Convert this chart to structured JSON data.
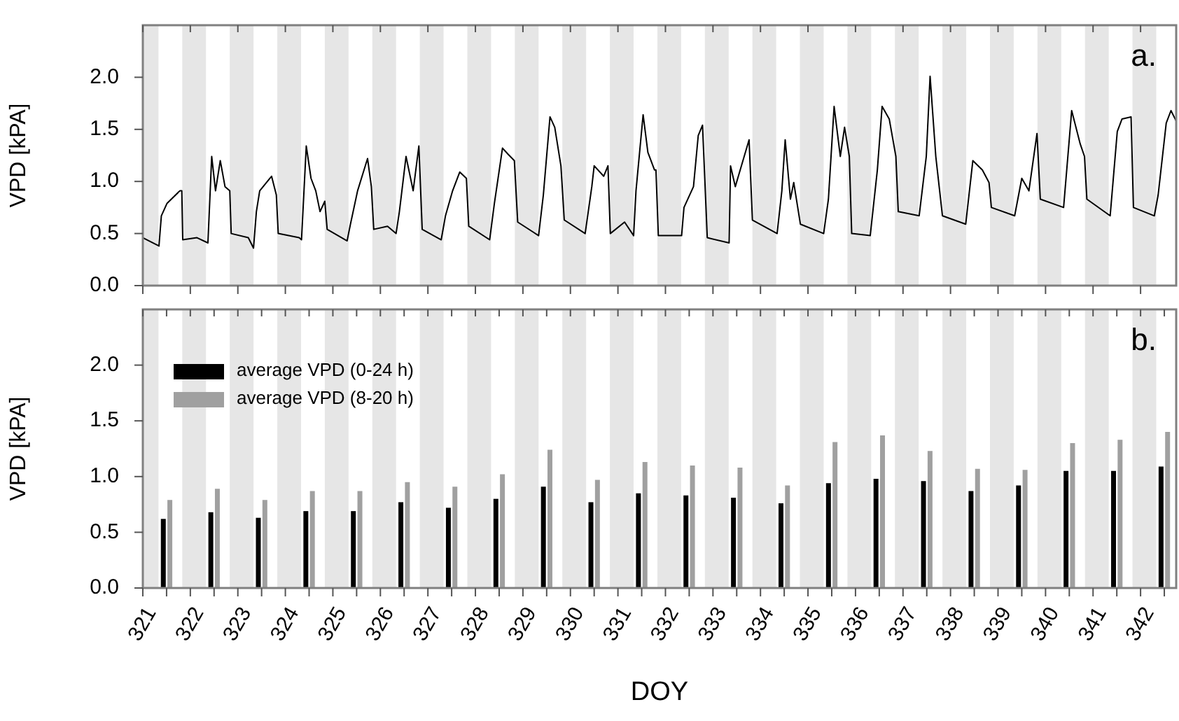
{
  "chart_data": [
    {
      "type": "line",
      "ylabel": "VPD [kPA]",
      "annotations": [
        "a."
      ],
      "tick_labels": "y",
      "xlim": [
        321,
        342.75
      ],
      "xticks": [
        {
          "value": 321,
          "label": null
        },
        {
          "value": 322,
          "label": null
        },
        {
          "value": 323,
          "label": null
        },
        {
          "value": 324,
          "label": null
        },
        {
          "value": 325,
          "label": null
        },
        {
          "value": 326,
          "label": null
        },
        {
          "value": 327,
          "label": null
        },
        {
          "value": 328,
          "label": null
        },
        {
          "value": 329,
          "label": null
        },
        {
          "value": 330,
          "label": null
        },
        {
          "value": 331,
          "label": null
        },
        {
          "value": 332,
          "label": null
        },
        {
          "value": 333,
          "label": null
        },
        {
          "value": 334,
          "label": null
        },
        {
          "value": 335,
          "label": null
        },
        {
          "value": 336,
          "label": null
        },
        {
          "value": 337,
          "label": null
        },
        {
          "value": 338,
          "label": null
        },
        {
          "value": 339,
          "label": null
        },
        {
          "value": 340,
          "label": null
        },
        {
          "value": 341,
          "label": null
        },
        {
          "value": 342,
          "label": null
        }
      ],
      "ylim": [
        0,
        2.5
      ],
      "yticks": [
        {
          "value": 0,
          "label": "0.0"
        },
        {
          "value": 0.5,
          "label": "0.5"
        },
        {
          "value": 1,
          "label": "1.0"
        },
        {
          "value": 1.5,
          "label": "1.5"
        },
        {
          "value": 2,
          "label": "2.0"
        }
      ],
      "bands": [
        {
          "axis": "x",
          "from": 321,
          "to": 321.33,
          "color": "#e6e6e6"
        },
        {
          "axis": "x",
          "from": 321.83,
          "to": 322.33,
          "color": "#e6e6e6"
        },
        {
          "axis": "x",
          "from": 322.83,
          "to": 323.33,
          "color": "#e6e6e6"
        },
        {
          "axis": "x",
          "from": 323.83,
          "to": 324.33,
          "color": "#e6e6e6"
        },
        {
          "axis": "x",
          "from": 324.83,
          "to": 325.33,
          "color": "#e6e6e6"
        },
        {
          "axis": "x",
          "from": 325.83,
          "to": 326.33,
          "color": "#e6e6e6"
        },
        {
          "axis": "x",
          "from": 326.83,
          "to": 327.33,
          "color": "#e6e6e6"
        },
        {
          "axis": "x",
          "from": 327.83,
          "to": 328.33,
          "color": "#e6e6e6"
        },
        {
          "axis": "x",
          "from": 328.83,
          "to": 329.33,
          "color": "#e6e6e6"
        },
        {
          "axis": "x",
          "from": 329.83,
          "to": 330.33,
          "color": "#e6e6e6"
        },
        {
          "axis": "x",
          "from": 330.83,
          "to": 331.33,
          "color": "#e6e6e6"
        },
        {
          "axis": "x",
          "from": 331.83,
          "to": 332.33,
          "color": "#e6e6e6"
        },
        {
          "axis": "x",
          "from": 332.83,
          "to": 333.33,
          "color": "#e6e6e6"
        },
        {
          "axis": "x",
          "from": 333.83,
          "to": 334.33,
          "color": "#e6e6e6"
        },
        {
          "axis": "x",
          "from": 334.83,
          "to": 335.33,
          "color": "#e6e6e6"
        },
        {
          "axis": "x",
          "from": 335.83,
          "to": 336.33,
          "color": "#e6e6e6"
        },
        {
          "axis": "x",
          "from": 336.83,
          "to": 337.33,
          "color": "#e6e6e6"
        },
        {
          "axis": "x",
          "from": 337.83,
          "to": 338.33,
          "color": "#e6e6e6"
        },
        {
          "axis": "x",
          "from": 338.83,
          "to": 339.33,
          "color": "#e6e6e6"
        },
        {
          "axis": "x",
          "from": 339.83,
          "to": 340.33,
          "color": "#e6e6e6"
        },
        {
          "axis": "x",
          "from": 340.83,
          "to": 341.33,
          "color": "#e6e6e6"
        },
        {
          "axis": "x",
          "from": 341.83,
          "to": 342.33,
          "color": "#e6e6e6"
        }
      ],
      "x": [
        321.0,
        321.34,
        321.39,
        321.51,
        321.78,
        321.82,
        321.84,
        322.14,
        322.37,
        322.45,
        322.53,
        322.63,
        322.73,
        322.83,
        322.86,
        323.22,
        323.33,
        323.39,
        323.46,
        323.71,
        323.81,
        323.85,
        324.29,
        324.34,
        324.44,
        324.54,
        324.64,
        324.73,
        324.83,
        324.88,
        325.3,
        325.37,
        325.52,
        325.73,
        325.81,
        325.86,
        326.15,
        326.33,
        326.4,
        326.54,
        326.69,
        326.81,
        326.88,
        327.28,
        327.37,
        327.52,
        327.67,
        327.81,
        327.86,
        328.3,
        328.4,
        328.57,
        328.69,
        328.82,
        328.89,
        329.33,
        329.43,
        329.57,
        329.67,
        329.8,
        329.87,
        330.31,
        330.45,
        330.5,
        330.7,
        330.79,
        330.84,
        331.14,
        331.33,
        331.38,
        331.53,
        331.63,
        331.77,
        331.8,
        331.85,
        332.34,
        332.39,
        332.59,
        332.69,
        332.78,
        332.88,
        333.34,
        333.37,
        333.47,
        333.76,
        333.83,
        334.35,
        334.45,
        334.52,
        334.63,
        334.7,
        334.84,
        335.33,
        335.43,
        335.55,
        335.68,
        335.77,
        335.87,
        335.92,
        336.31,
        336.46,
        336.56,
        336.71,
        336.85,
        336.9,
        337.34,
        337.49,
        337.57,
        337.69,
        337.83,
        338.32,
        338.47,
        338.67,
        338.81,
        338.86,
        339.35,
        339.5,
        339.65,
        339.82,
        339.89,
        340.38,
        340.55,
        340.73,
        340.82,
        340.87,
        341.36,
        341.51,
        341.61,
        341.8,
        341.85,
        342.29,
        342.37,
        342.54,
        342.64,
        342.75
      ],
      "series": [
        {
          "color": "#000000",
          "values": [
            0.46,
            0.38,
            0.67,
            0.79,
            0.91,
            0.91,
            0.44,
            0.46,
            0.41,
            1.24,
            0.91,
            1.2,
            0.95,
            0.91,
            0.5,
            0.46,
            0.36,
            0.71,
            0.91,
            1.05,
            0.87,
            0.5,
            0.46,
            0.44,
            1.34,
            1.03,
            0.91,
            0.71,
            0.81,
            0.54,
            0.43,
            0.59,
            0.91,
            1.22,
            0.95,
            0.54,
            0.57,
            0.5,
            0.71,
            1.24,
            0.91,
            1.34,
            0.54,
            0.44,
            0.67,
            0.91,
            1.09,
            1.03,
            0.57,
            0.44,
            0.79,
            1.32,
            1.26,
            1.2,
            0.61,
            0.48,
            0.87,
            1.62,
            1.52,
            1.15,
            0.63,
            0.5,
            0.95,
            1.15,
            1.05,
            1.15,
            0.5,
            0.61,
            0.48,
            0.91,
            1.64,
            1.28,
            1.11,
            1.11,
            0.48,
            0.48,
            0.75,
            0.95,
            1.44,
            1.54,
            0.46,
            0.41,
            1.15,
            0.95,
            1.4,
            0.63,
            0.5,
            0.91,
            1.4,
            0.83,
            0.99,
            0.59,
            0.5,
            0.83,
            1.72,
            1.24,
            1.52,
            1.24,
            0.5,
            0.48,
            1.11,
            1.72,
            1.6,
            1.24,
            0.71,
            0.67,
            1.24,
            2.01,
            1.24,
            0.67,
            0.59,
            1.2,
            1.11,
            0.99,
            0.75,
            0.67,
            1.03,
            0.91,
            1.46,
            0.83,
            0.75,
            1.68,
            1.36,
            1.24,
            0.83,
            0.67,
            1.48,
            1.6,
            1.62,
            0.75,
            0.67,
            0.87,
            1.56,
            1.68,
            1.58
          ]
        }
      ]
    },
    {
      "type": "bar",
      "ylabel": "VPD [kPA]",
      "xlabel": "DOY",
      "annotations": [
        "b."
      ],
      "legend": "top left",
      "xlim": [
        321,
        342.75
      ],
      "xticks": [
        321,
        {
          "value": 321.5,
          "label": null
        },
        322,
        {
          "value": 322.5,
          "label": null
        },
        323,
        {
          "value": 323.5,
          "label": null
        },
        324,
        {
          "value": 324.5,
          "label": null
        },
        325,
        {
          "value": 325.5,
          "label": null
        },
        326,
        {
          "value": 326.5,
          "label": null
        },
        327,
        {
          "value": 327.5,
          "label": null
        },
        328,
        {
          "value": 328.5,
          "label": null
        },
        329,
        {
          "value": 329.5,
          "label": null
        },
        330,
        {
          "value": 330.5,
          "label": null
        },
        331,
        {
          "value": 331.5,
          "label": null
        },
        332,
        {
          "value": 332.5,
          "label": null
        },
        333,
        {
          "value": 333.5,
          "label": null
        },
        334,
        {
          "value": 334.5,
          "label": null
        },
        335,
        {
          "value": 335.5,
          "label": null
        },
        336,
        {
          "value": 336.5,
          "label": null
        },
        337,
        {
          "value": 337.5,
          "label": null
        },
        338,
        {
          "value": 338.5,
          "label": null
        },
        339,
        {
          "value": 339.5,
          "label": null
        },
        340,
        {
          "value": 340.5,
          "label": null
        },
        341,
        {
          "value": 341.5,
          "label": null
        },
        342,
        {
          "value": 342.5,
          "label": null
        }
      ],
      "ylim": [
        0,
        2.5
      ],
      "yticks": [
        {
          "value": 0,
          "label": "0.0"
        },
        {
          "value": 0.5,
          "label": "0.5"
        },
        {
          "value": 1,
          "label": "1.0"
        },
        {
          "value": 1.5,
          "label": "1.5"
        },
        {
          "value": 2,
          "label": "2.0"
        }
      ],
      "bands": [
        {
          "axis": "x",
          "from": 321,
          "to": 321.33,
          "color": "#e6e6e6"
        },
        {
          "axis": "x",
          "from": 321.83,
          "to": 322.33,
          "color": "#e6e6e6"
        },
        {
          "axis": "x",
          "from": 322.83,
          "to": 323.33,
          "color": "#e6e6e6"
        },
        {
          "axis": "x",
          "from": 323.83,
          "to": 324.33,
          "color": "#e6e6e6"
        },
        {
          "axis": "x",
          "from": 324.83,
          "to": 325.33,
          "color": "#e6e6e6"
        },
        {
          "axis": "x",
          "from": 325.83,
          "to": 326.33,
          "color": "#e6e6e6"
        },
        {
          "axis": "x",
          "from": 326.83,
          "to": 327.33,
          "color": "#e6e6e6"
        },
        {
          "axis": "x",
          "from": 327.83,
          "to": 328.33,
          "color": "#e6e6e6"
        },
        {
          "axis": "x",
          "from": 328.83,
          "to": 329.33,
          "color": "#e6e6e6"
        },
        {
          "axis": "x",
          "from": 329.83,
          "to": 330.33,
          "color": "#e6e6e6"
        },
        {
          "axis": "x",
          "from": 330.83,
          "to": 331.33,
          "color": "#e6e6e6"
        },
        {
          "axis": "x",
          "from": 331.83,
          "to": 332.33,
          "color": "#e6e6e6"
        },
        {
          "axis": "x",
          "from": 332.83,
          "to": 333.33,
          "color": "#e6e6e6"
        },
        {
          "axis": "x",
          "from": 333.83,
          "to": 334.33,
          "color": "#e6e6e6"
        },
        {
          "axis": "x",
          "from": 334.83,
          "to": 335.33,
          "color": "#e6e6e6"
        },
        {
          "axis": "x",
          "from": 335.83,
          "to": 336.33,
          "color": "#e6e6e6"
        },
        {
          "axis": "x",
          "from": 336.83,
          "to": 337.33,
          "color": "#e6e6e6"
        },
        {
          "axis": "x",
          "from": 337.83,
          "to": 338.33,
          "color": "#e6e6e6"
        },
        {
          "axis": "x",
          "from": 338.83,
          "to": 339.33,
          "color": "#e6e6e6"
        },
        {
          "axis": "x",
          "from": 339.83,
          "to": 340.33,
          "color": "#e6e6e6"
        },
        {
          "axis": "x",
          "from": 340.83,
          "to": 341.33,
          "color": "#e6e6e6"
        },
        {
          "axis": "x",
          "from": 341.83,
          "to": 342.33,
          "color": "#e6e6e6"
        }
      ],
      "x": [
        321.5,
        322.5,
        323.5,
        324.5,
        325.5,
        326.5,
        327.5,
        328.5,
        329.5,
        330.5,
        331.5,
        332.5,
        333.5,
        334.5,
        335.5,
        336.5,
        337.5,
        338.5,
        339.5,
        340.5,
        341.5,
        342.5
      ],
      "series": [
        {
          "name": "average VPD (0-24 h)",
          "color": "#000000",
          "values": [
            0.62,
            0.68,
            0.63,
            0.69,
            0.69,
            0.77,
            0.72,
            0.8,
            0.91,
            0.77,
            0.85,
            0.83,
            0.81,
            0.76,
            0.94,
            0.98,
            0.96,
            0.87,
            0.92,
            1.05,
            1.05,
            1.09
          ]
        },
        {
          "name": "average VPD (8-20 h)",
          "color": "#a0a0a0",
          "values": [
            0.79,
            0.89,
            0.79,
            0.87,
            0.87,
            0.95,
            0.91,
            1.02,
            1.24,
            0.97,
            1.13,
            1.1,
            1.08,
            0.92,
            1.31,
            1.37,
            1.23,
            1.07,
            1.06,
            1.3,
            1.33,
            1.4
          ]
        }
      ]
    }
  ]
}
